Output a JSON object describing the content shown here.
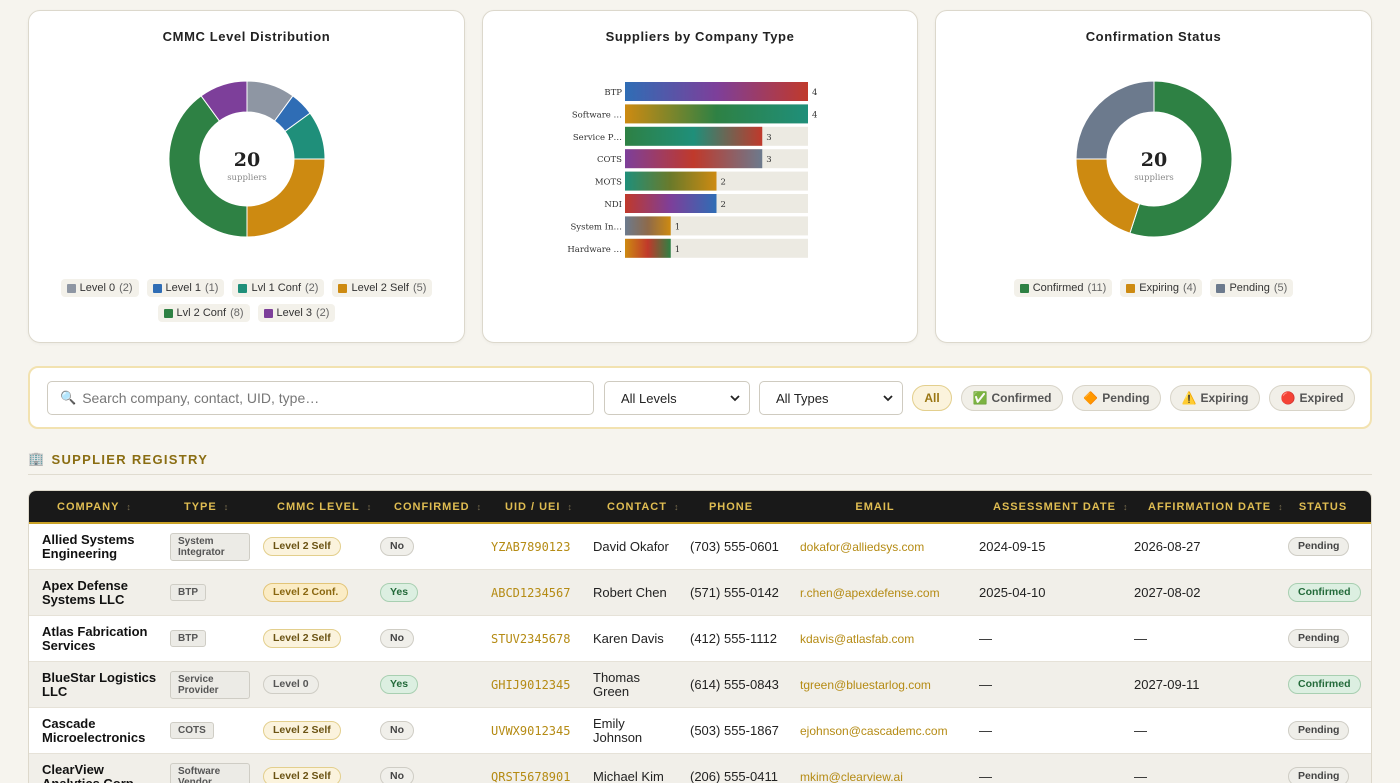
{
  "charts": {
    "level": {
      "title": "CMMC Level Distribution",
      "center_value": "20",
      "center_label": "suppliers"
    },
    "type": {
      "title": "Suppliers by Company Type"
    },
    "confirmation": {
      "title": "Confirmation Status",
      "center_value": "20",
      "center_label": "suppliers"
    }
  },
  "chart_data": [
    {
      "type": "pie",
      "title": "CMMC Level Distribution",
      "categories": [
        "Level 0",
        "Level 1",
        "Lvl 1 Conf",
        "Level 2 Self",
        "Lvl 2 Conf",
        "Level 3"
      ],
      "values": [
        2,
        1,
        2,
        5,
        8,
        2
      ],
      "colors": [
        "#8e96a3",
        "#2f6db5",
        "#1f8f7a",
        "#cd8a11",
        "#2e8144",
        "#7d3f9a"
      ],
      "legend": "bottom"
    },
    {
      "type": "bar",
      "title": "Suppliers by Company Type",
      "orientation": "horizontal",
      "categories": [
        "BTP",
        "Software …",
        "Service P…",
        "COTS",
        "MOTS",
        "NDI",
        "System In…",
        "Hardware …"
      ],
      "values": [
        4,
        4,
        3,
        3,
        2,
        2,
        1,
        1
      ],
      "xlim": [
        0,
        4
      ]
    },
    {
      "type": "pie",
      "title": "Confirmation Status",
      "categories": [
        "Confirmed",
        "Expiring",
        "Pending"
      ],
      "values": [
        11,
        4,
        5
      ],
      "colors": [
        "#2e8144",
        "#cd8a11",
        "#6c7a8d"
      ],
      "legend": "bottom"
    }
  ],
  "filters": {
    "search_placeholder": "Search company, contact, UID, type…",
    "search_icon": "🔍",
    "level_select": "All Levels",
    "type_select": "All Types",
    "chips": [
      {
        "label": "All",
        "icon": ""
      },
      {
        "label": "Confirmed",
        "icon": "✅"
      },
      {
        "label": "Pending",
        "icon": "🔶"
      },
      {
        "label": "Expiring",
        "icon": "⚠️"
      },
      {
        "label": "Expired",
        "icon": "🔴"
      }
    ]
  },
  "registry": {
    "icon": "🏢",
    "title": "SUPPLIER REGISTRY",
    "columns": [
      "COMPANY",
      "TYPE",
      "CMMC LEVEL",
      "CONFIRMED",
      "UID / UEI",
      "CONTACT",
      "PHONE",
      "EMAIL",
      "ASSESSMENT DATE",
      "AFFIRMATION DATE",
      "STATUS"
    ],
    "sort_glyph": "↕",
    "rows": [
      {
        "company": "Allied Systems Engineering",
        "type": "System Integrator",
        "level": "Level 2 Self",
        "confirmed": "No",
        "uid": "YZAB7890123",
        "contact": "David Okafor",
        "phone": "(703) 555-0601",
        "email": "dokafor@alliedsys.com",
        "assessment": "2024-09-15",
        "affirmation": "2026-08-27",
        "status": "Pending"
      },
      {
        "company": "Apex Defense Systems LLC",
        "type": "BTP",
        "level": "Level 2 Conf.",
        "confirmed": "Yes",
        "uid": "ABCD1234567",
        "contact": "Robert Chen",
        "phone": "(571) 555-0142",
        "email": "r.chen@apexdefense.com",
        "assessment": "2025-04-10",
        "affirmation": "2027-08-02",
        "status": "Confirmed"
      },
      {
        "company": "Atlas Fabrication Services",
        "type": "BTP",
        "level": "Level 2 Self",
        "confirmed": "No",
        "uid": "STUV2345678",
        "contact": "Karen Davis",
        "phone": "(412) 555-1112",
        "email": "kdavis@atlasfab.com",
        "assessment": "—",
        "affirmation": "—",
        "status": "Pending"
      },
      {
        "company": "BlueStar Logistics LLC",
        "type": "Service Provider",
        "level": "Level 0",
        "confirmed": "Yes",
        "uid": "GHIJ9012345",
        "contact": "Thomas Green",
        "phone": "(614) 555-0843",
        "email": "tgreen@bluestarlog.com",
        "assessment": "—",
        "affirmation": "2027-09-11",
        "status": "Confirmed"
      },
      {
        "company": "Cascade Microelectronics",
        "type": "COTS",
        "level": "Level 2 Self",
        "confirmed": "No",
        "uid": "UVWX9012345",
        "contact": "Emily Johnson",
        "phone": "(503) 555-1867",
        "email": "ejohnson@cascademc.com",
        "assessment": "—",
        "affirmation": "—",
        "status": "Pending"
      },
      {
        "company": "ClearView Analytics Corp",
        "type": "Software Vendor",
        "level": "Level 2 Self",
        "confirmed": "No",
        "uid": "QRST5678901",
        "contact": "Michael Kim",
        "phone": "(206) 555-0411",
        "email": "mkim@clearview.ai",
        "assessment": "—",
        "affirmation": "—",
        "status": "Pending"
      }
    ]
  }
}
